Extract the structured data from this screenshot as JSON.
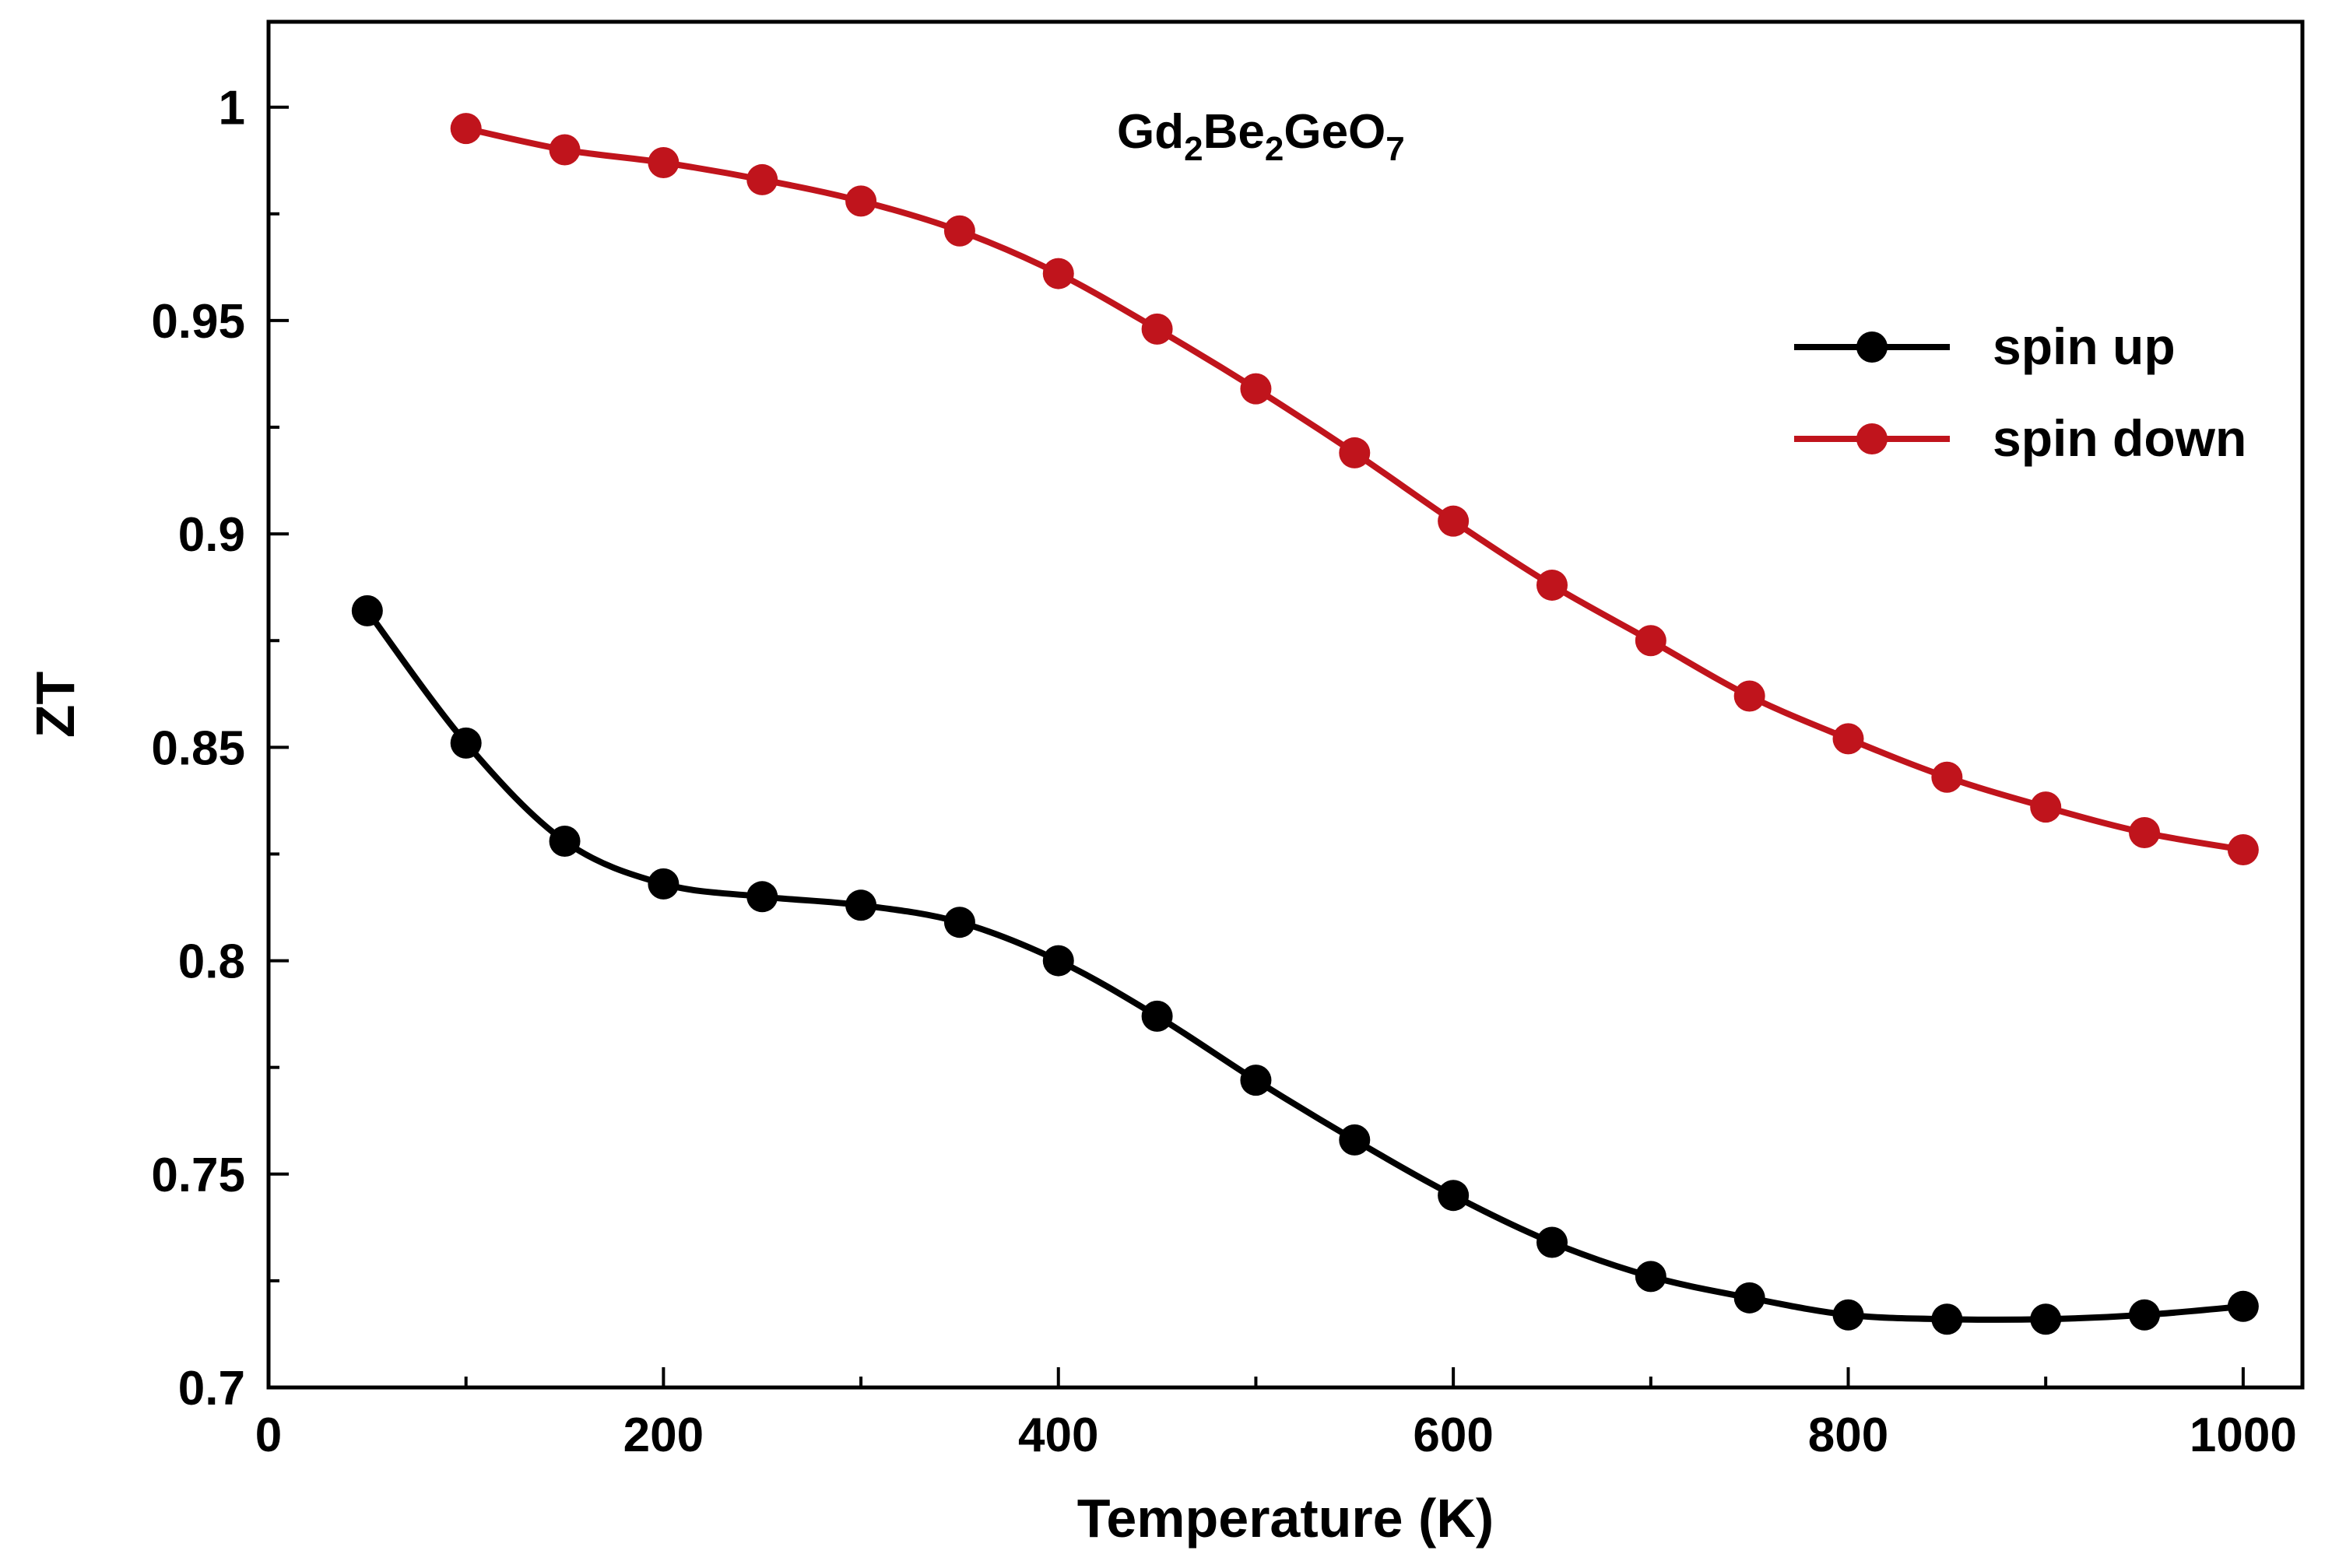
{
  "chart_data": {
    "type": "line",
    "title": "",
    "xlabel": "Temperature (K)",
    "ylabel": "ZT",
    "xlim": [
      0,
      1030
    ],
    "ylim": [
      0.7,
      1.02
    ],
    "xticks": [
      0,
      200,
      400,
      600,
      800,
      1000
    ],
    "xtick_labels": [
      "0",
      "200",
      "400",
      "600",
      "800",
      "1000"
    ],
    "yticks": [
      0.7,
      0.75,
      0.8,
      0.85,
      0.9,
      0.95,
      1.0
    ],
    "ytick_labels": [
      "0.7",
      "0.75",
      "0.8",
      "0.85",
      "0.9",
      "0.95",
      "1"
    ],
    "grid": false,
    "legend_position": "top-right",
    "annotation": {
      "parts": [
        {
          "text": "Gd",
          "sub": false
        },
        {
          "text": "2",
          "sub": true
        },
        {
          "text": "Be",
          "sub": false
        },
        {
          "text": "2",
          "sub": true
        },
        {
          "text": "GeO",
          "sub": false
        },
        {
          "text": "7",
          "sub": true
        }
      ]
    },
    "series": [
      {
        "name": "spin up",
        "color": "#000000",
        "x": [
          50,
          100,
          150,
          200,
          250,
          300,
          350,
          400,
          450,
          500,
          550,
          600,
          650,
          700,
          750,
          800,
          850,
          900,
          950,
          1000
        ],
        "y": [
          0.882,
          0.851,
          0.828,
          0.818,
          0.815,
          0.813,
          0.809,
          0.8,
          0.787,
          0.772,
          0.758,
          0.745,
          0.734,
          0.726,
          0.721,
          0.717,
          0.716,
          0.716,
          0.717,
          0.719
        ]
      },
      {
        "name": "spin down",
        "color": "#c0141c",
        "x": [
          100,
          150,
          200,
          250,
          300,
          350,
          400,
          450,
          500,
          550,
          600,
          650,
          700,
          750,
          800,
          850,
          900,
          950,
          1000
        ],
        "y": [
          0.995,
          0.99,
          0.987,
          0.983,
          0.978,
          0.971,
          0.961,
          0.948,
          0.934,
          0.919,
          0.903,
          0.888,
          0.875,
          0.862,
          0.852,
          0.843,
          0.836,
          0.83,
          0.826
        ]
      }
    ]
  }
}
